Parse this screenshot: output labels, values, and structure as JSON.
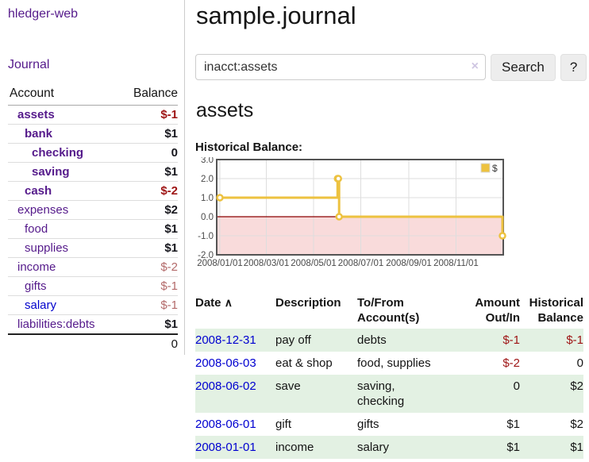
{
  "app": {
    "title": "hledger-web"
  },
  "sidebar": {
    "journal_link": "Journal",
    "accounts_table": {
      "headers": {
        "account": "Account",
        "balance": "Balance"
      },
      "rows": [
        {
          "name": "assets",
          "balance": "$-1",
          "indent": 1,
          "bold": true,
          "negative": "strong"
        },
        {
          "name": "bank",
          "balance": "$1",
          "indent": 2,
          "bold": true,
          "negative": ""
        },
        {
          "name": "checking",
          "balance": "0",
          "indent": 3,
          "bold": true,
          "negative": ""
        },
        {
          "name": "saving",
          "balance": "$1",
          "indent": 3,
          "bold": true,
          "negative": ""
        },
        {
          "name": "cash",
          "balance": "$-2",
          "indent": 2,
          "bold": true,
          "negative": "strong"
        },
        {
          "name": "expenses",
          "balance": "$2",
          "indent": 1,
          "bold": false,
          "negative": ""
        },
        {
          "name": "food",
          "balance": "$1",
          "indent": 2,
          "bold": false,
          "negative": ""
        },
        {
          "name": "supplies",
          "balance": "$1",
          "indent": 2,
          "bold": false,
          "negative": ""
        },
        {
          "name": "income",
          "balance": "$-2",
          "indent": 1,
          "bold": false,
          "negative": "soft"
        },
        {
          "name": "gifts",
          "balance": "$-1",
          "indent": 2,
          "bold": false,
          "negative": "soft"
        },
        {
          "name": "salary",
          "balance": "$-1",
          "indent": 2,
          "bold": false,
          "negative": "soft",
          "link_color": "blue"
        },
        {
          "name": "liabilities:debts",
          "balance": "$1",
          "indent": 1,
          "bold": false,
          "negative": ""
        }
      ],
      "total": "0"
    }
  },
  "main": {
    "title": "sample.journal",
    "search": {
      "value": "inacct:assets",
      "clear_icon": "×",
      "search_button": "Search",
      "help_button": "?"
    },
    "account_heading": "assets",
    "chart_label": "Historical Balance:"
  },
  "chart_data": {
    "type": "line",
    "title": "Historical Balance",
    "step": true,
    "series": [
      {
        "name": "$",
        "color": "#edc240",
        "points": [
          {
            "date": "2008-01-01",
            "value": 1.0
          },
          {
            "date": "2008-06-01",
            "value": 2.0
          },
          {
            "date": "2008-06-02",
            "value": 2.0
          },
          {
            "date": "2008-06-03",
            "value": 0.0
          },
          {
            "date": "2008-12-31",
            "value": -1.0
          }
        ]
      }
    ],
    "ylim": [
      -2.0,
      3.0
    ],
    "yticks": [
      3.0,
      2.0,
      1.0,
      0.0,
      -1.0,
      -2.0
    ],
    "ytick_labels": [
      "3.0",
      "2.0",
      "1.0",
      "0.0",
      "-1.0",
      "-2.0"
    ],
    "xticks": [
      "2008/01/01",
      "2008/03/01",
      "2008/05/01",
      "2008/07/01",
      "2008/09/01",
      "2008/11/01"
    ],
    "legend_position": "top-right",
    "grid": true,
    "negative_region_color": "#f9dbdb",
    "zero_line_color": "#8b0000",
    "border_color": "#545454"
  },
  "register_table": {
    "headers": {
      "date": "Date",
      "sort_icon": "∧",
      "description": "Description",
      "account_line1": "To/From",
      "account_line2": "Account(s)",
      "amount_line1": "Amount",
      "amount_line2": "Out/In",
      "balance_line1": "Historical",
      "balance_line2": "Balance"
    },
    "rows": [
      {
        "date": "2008-12-31",
        "description": "pay off",
        "accounts": "debts",
        "amount": "$-1",
        "balance": "$-1",
        "amount_negative": true,
        "balance_negative": true
      },
      {
        "date": "2008-06-03",
        "description": "eat & shop",
        "accounts": "food, supplies",
        "amount": "$-2",
        "balance": "0",
        "amount_negative": true,
        "balance_negative": false
      },
      {
        "date": "2008-06-02",
        "description": "save",
        "accounts": "saving, checking",
        "amount": "0",
        "balance": "$2",
        "amount_negative": false,
        "balance_negative": false
      },
      {
        "date": "2008-06-01",
        "description": "gift",
        "accounts": "gifts",
        "amount": "$1",
        "balance": "$2",
        "amount_negative": false,
        "balance_negative": false
      },
      {
        "date": "2008-01-01",
        "description": "income",
        "accounts": "salary",
        "amount": "$1",
        "balance": "$1",
        "amount_negative": false,
        "balance_negative": false
      }
    ]
  }
}
